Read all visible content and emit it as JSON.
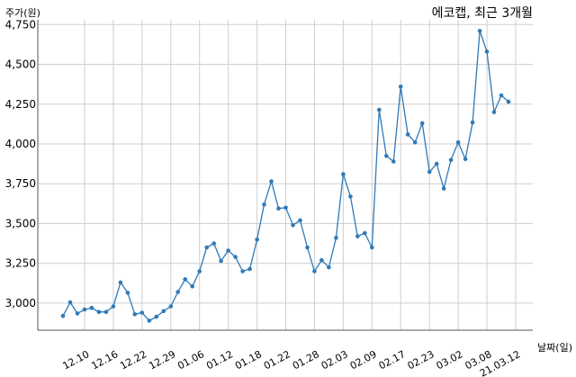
{
  "chart_data": {
    "type": "line",
    "title": "에코캡, 최근 3개월",
    "ylabel": "주가(원)",
    "xlabel": "날짜(일)",
    "ylim": [
      2830,
      4780
    ],
    "yticks": [
      "3,000",
      "3,250",
      "3,500",
      "3,750",
      "4,000",
      "4,250",
      "4,500",
      "4,750"
    ],
    "ytick_values": [
      3000,
      3250,
      3500,
      3750,
      4000,
      4250,
      4500,
      4750
    ],
    "xticks": [
      "12.10",
      "12.16",
      "12.22",
      "12.29",
      "01.06",
      "01.12",
      "01.18",
      "01.22",
      "01.28",
      "02.03",
      "02.09",
      "02.17",
      "02.23",
      "03.02",
      "03.08",
      "21.03.12"
    ],
    "xtick_index": [
      3,
      7,
      11,
      15,
      19,
      23,
      27,
      31,
      35,
      39,
      43,
      47,
      51,
      55,
      59,
      63
    ],
    "grid": true,
    "color": "#2f7ab8",
    "series": [
      {
        "values": [
          2920,
          3005,
          2935,
          2960,
          2970,
          2945,
          2945,
          2980,
          3130,
          3065,
          2930,
          2940,
          2890,
          2915,
          2950,
          2980,
          3070,
          3150,
          3105,
          3200,
          3350,
          3375,
          3265,
          3330,
          3290,
          3200,
          3215,
          3400,
          3620,
          3765,
          3595,
          3600,
          3490,
          3520,
          3350,
          3200,
          3270,
          3225,
          3410,
          3810,
          3670,
          3420,
          3440,
          3350,
          4215,
          3925,
          3890,
          4360,
          4060,
          4010,
          4130,
          3825,
          3875,
          3720,
          3900,
          4010,
          3905,
          4135,
          4710,
          4580,
          4200,
          4305,
          4265
        ]
      }
    ]
  }
}
